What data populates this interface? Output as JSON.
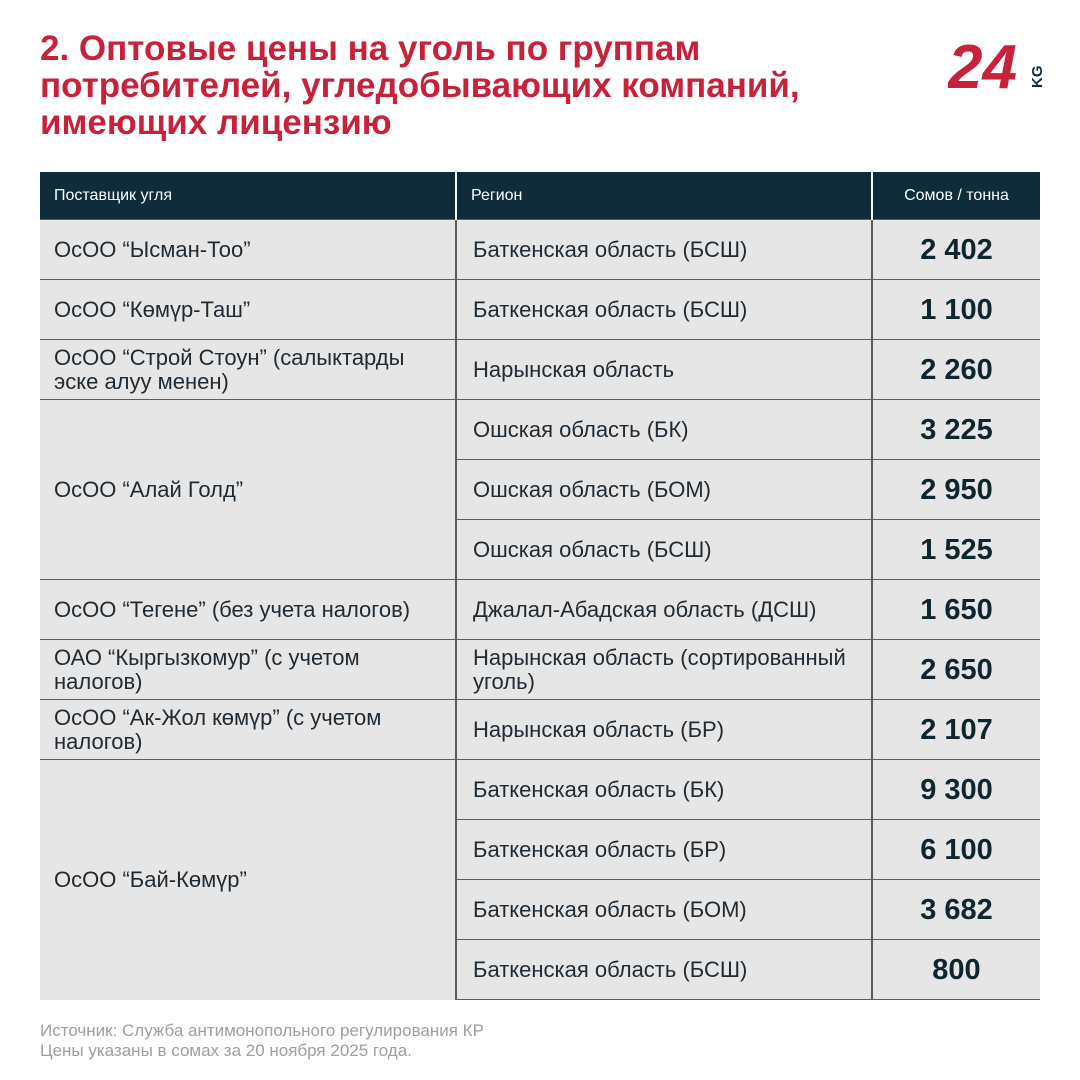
{
  "title": "2. Оптовые цены на уголь по группам потребителей, угледобывающих компаний, имеющих лицензию",
  "logo": {
    "number": "24",
    "suffix": "KG",
    "color": "#c8223a"
  },
  "table": {
    "headers": {
      "supplier": "Поставщик угля",
      "region": "Регион",
      "price": "Сомов / тонна"
    },
    "groups": [
      {
        "supplier": "ОсОО “Ысман-Тоо”",
        "rows": [
          {
            "region": "Баткенская область (БСШ)",
            "price": "2 402"
          }
        ]
      },
      {
        "supplier": "ОсОО “Көмүр-Таш”",
        "rows": [
          {
            "region": "Баткенская область (БСШ)",
            "price": "1 100"
          }
        ]
      },
      {
        "supplier": "ОсОО “Строй Стоун” (салыктарды эске алуу менен)",
        "rows": [
          {
            "region": "Нарынская область",
            "price": "2 260"
          }
        ]
      },
      {
        "supplier": "ОсОО “Алай Голд”",
        "rows": [
          {
            "region": "Ошская область (БК)",
            "price": "3 225"
          },
          {
            "region": "Ошская область (БОМ)",
            "price": "2 950"
          },
          {
            "region": "Ошская область (БСШ)",
            "price": "1 525"
          }
        ]
      },
      {
        "supplier": "ОсОО “Тегене” (без учета налогов)",
        "rows": [
          {
            "region": "Джалал-Абадская область (ДСШ)",
            "price": "1 650"
          }
        ]
      },
      {
        "supplier": "ОАО “Кыргызкомур” (с учетом налогов)",
        "rows": [
          {
            "region": "Нарынская область (сортированный уголь)",
            "price": "2 650"
          }
        ]
      },
      {
        "supplier": "ОсОО “Ак-Жол көмүр” (с учетом налогов)",
        "rows": [
          {
            "region": "Нарынская область (БР)",
            "price": "2 107"
          }
        ]
      },
      {
        "supplier": "ОсОО “Бай-Көмүр”",
        "rows": [
          {
            "region": "Баткенская область (БК)",
            "price": "9 300"
          },
          {
            "region": "Баткенская область (БР)",
            "price": "6 100"
          },
          {
            "region": "Баткенская область (БОМ)",
            "price": "3 682"
          },
          {
            "region": "Баткенская область (БСШ)",
            "price": "800"
          }
        ]
      }
    ]
  },
  "source": [
    "Источник: Служба антимонопольного регулирования КР",
    "Цены указаны в сомах за 20 ноября 2025 года."
  ]
}
